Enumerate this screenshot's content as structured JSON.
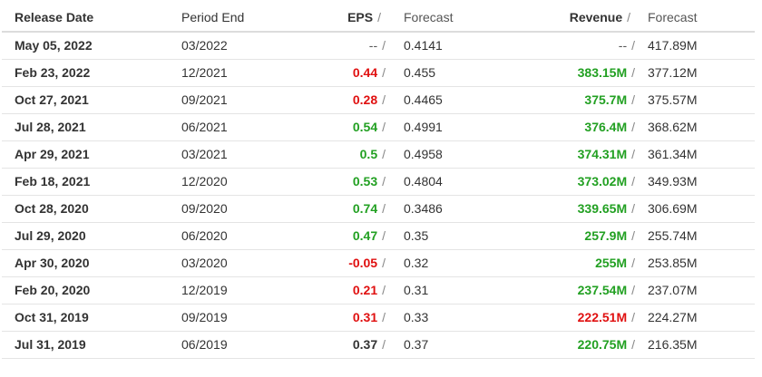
{
  "colors": {
    "beat": "#22a022",
    "miss": "#e01010",
    "neutral": "#333333"
  },
  "header": {
    "release_date": "Release Date",
    "period_end": "Period End",
    "eps": "EPS",
    "eps_sep": "/",
    "eps_forecast": "Forecast",
    "revenue": "Revenue",
    "revenue_sep": "/",
    "revenue_forecast": "Forecast"
  },
  "separator": "/",
  "rows": [
    {
      "release_date": "May 05, 2022",
      "period_end": "03/2022",
      "eps": "--",
      "eps_status": "neutral",
      "eps_forecast": "0.4141",
      "revenue": "--",
      "revenue_status": "neutral",
      "revenue_forecast": "417.89M"
    },
    {
      "release_date": "Feb 23, 2022",
      "period_end": "12/2021",
      "eps": "0.44",
      "eps_status": "miss",
      "eps_forecast": "0.455",
      "revenue": "383.15M",
      "revenue_status": "beat",
      "revenue_forecast": "377.12M"
    },
    {
      "release_date": "Oct 27, 2021",
      "period_end": "09/2021",
      "eps": "0.28",
      "eps_status": "miss",
      "eps_forecast": "0.4465",
      "revenue": "375.7M",
      "revenue_status": "beat",
      "revenue_forecast": "375.57M"
    },
    {
      "release_date": "Jul 28, 2021",
      "period_end": "06/2021",
      "eps": "0.54",
      "eps_status": "beat",
      "eps_forecast": "0.4991",
      "revenue": "376.4M",
      "revenue_status": "beat",
      "revenue_forecast": "368.62M"
    },
    {
      "release_date": "Apr 29, 2021",
      "period_end": "03/2021",
      "eps": "0.5",
      "eps_status": "beat",
      "eps_forecast": "0.4958",
      "revenue": "374.31M",
      "revenue_status": "beat",
      "revenue_forecast": "361.34M"
    },
    {
      "release_date": "Feb 18, 2021",
      "period_end": "12/2020",
      "eps": "0.53",
      "eps_status": "beat",
      "eps_forecast": "0.4804",
      "revenue": "373.02M",
      "revenue_status": "beat",
      "revenue_forecast": "349.93M"
    },
    {
      "release_date": "Oct 28, 2020",
      "period_end": "09/2020",
      "eps": "0.74",
      "eps_status": "beat",
      "eps_forecast": "0.3486",
      "revenue": "339.65M",
      "revenue_status": "beat",
      "revenue_forecast": "306.69M"
    },
    {
      "release_date": "Jul 29, 2020",
      "period_end": "06/2020",
      "eps": "0.47",
      "eps_status": "beat",
      "eps_forecast": "0.35",
      "revenue": "257.9M",
      "revenue_status": "beat",
      "revenue_forecast": "255.74M"
    },
    {
      "release_date": "Apr 30, 2020",
      "period_end": "03/2020",
      "eps": "-0.05",
      "eps_status": "miss",
      "eps_forecast": "0.32",
      "revenue": "255M",
      "revenue_status": "beat",
      "revenue_forecast": "253.85M"
    },
    {
      "release_date": "Feb 20, 2020",
      "period_end": "12/2019",
      "eps": "0.21",
      "eps_status": "miss",
      "eps_forecast": "0.31",
      "revenue": "237.54M",
      "revenue_status": "beat",
      "revenue_forecast": "237.07M"
    },
    {
      "release_date": "Oct 31, 2019",
      "period_end": "09/2019",
      "eps": "0.31",
      "eps_status": "miss",
      "eps_forecast": "0.33",
      "revenue": "222.51M",
      "revenue_status": "miss",
      "revenue_forecast": "224.27M"
    },
    {
      "release_date": "Jul 31, 2019",
      "period_end": "06/2019",
      "eps": "0.37",
      "eps_status": "neutral",
      "eps_forecast": "0.37",
      "revenue": "220.75M",
      "revenue_status": "beat",
      "revenue_forecast": "216.35M"
    }
  ]
}
